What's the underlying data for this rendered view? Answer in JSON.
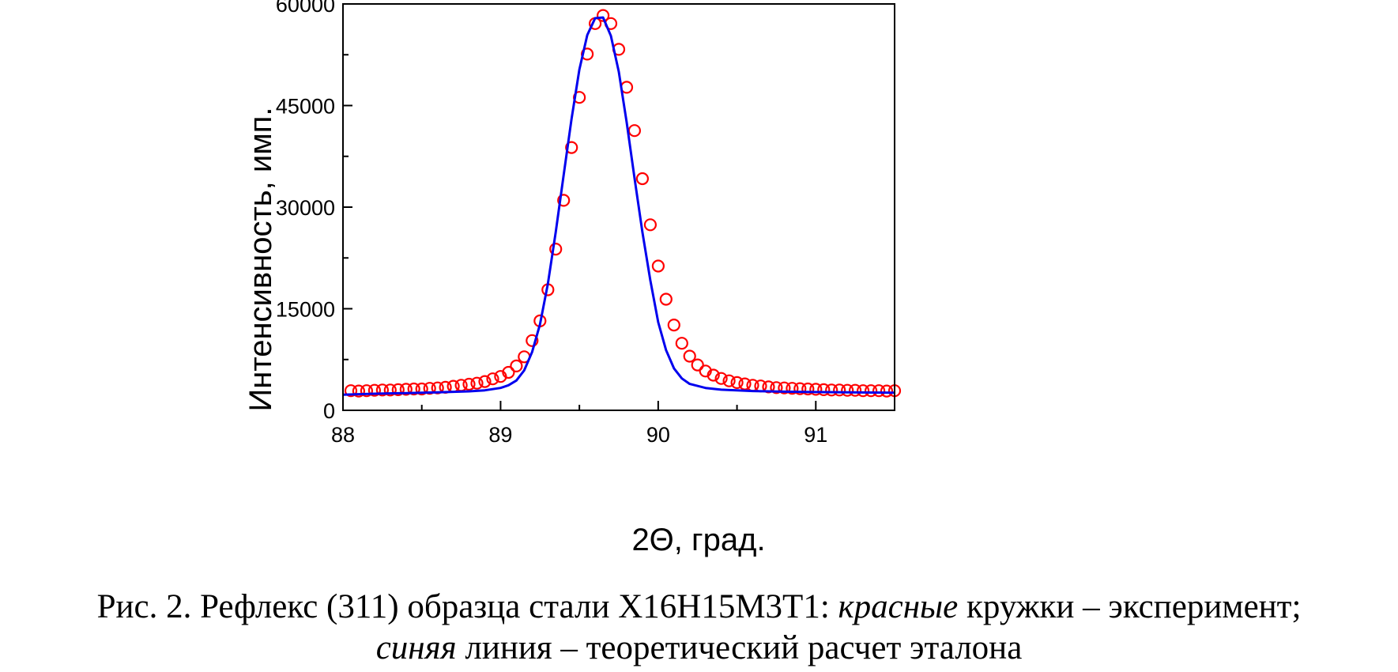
{
  "chart_data": {
    "type": "scatter",
    "xlabel": "2Θ, град.",
    "ylabel": "Интенсивность, имп.",
    "xlim": [
      88,
      91.5
    ],
    "ylim": [
      0,
      60000
    ],
    "xticks": [
      88,
      89,
      90,
      91
    ],
    "yticks": [
      0,
      15000,
      30000,
      45000,
      60000
    ],
    "grid": false,
    "series": [
      {
        "kind": "markers",
        "marker": "open-circle",
        "color": "#ff0000",
        "x": [
          88.05,
          88.1,
          88.15,
          88.2,
          88.25,
          88.3,
          88.35,
          88.4,
          88.45,
          88.5,
          88.55,
          88.6,
          88.65,
          88.7,
          88.75,
          88.8,
          88.85,
          88.9,
          88.95,
          89.0,
          89.05,
          89.1,
          89.15,
          89.2,
          89.25,
          89.3,
          89.35,
          89.4,
          89.45,
          89.5,
          89.55,
          89.6,
          89.65,
          89.7,
          89.75,
          89.8,
          89.85,
          89.9,
          89.95,
          90.0,
          90.05,
          90.1,
          90.15,
          90.2,
          90.25,
          90.3,
          90.35,
          90.4,
          90.45,
          90.5,
          90.55,
          90.6,
          90.65,
          90.7,
          90.75,
          90.8,
          90.85,
          90.9,
          90.95,
          91.0,
          91.05,
          91.1,
          91.15,
          91.2,
          91.25,
          91.3,
          91.35,
          91.4,
          91.45,
          91.5
        ],
        "y": [
          2900,
          2850,
          2900,
          2950,
          3000,
          3000,
          3050,
          3100,
          3150,
          3150,
          3250,
          3300,
          3400,
          3550,
          3700,
          3850,
          4000,
          4250,
          4650,
          5000,
          5600,
          6550,
          7900,
          10300,
          13200,
          17800,
          23800,
          31000,
          38800,
          46200,
          52600,
          57100,
          58300,
          57100,
          53300,
          47700,
          41300,
          34200,
          27400,
          21300,
          16400,
          12600,
          9900,
          8000,
          6700,
          5800,
          5200,
          4700,
          4350,
          4100,
          3900,
          3700,
          3600,
          3450,
          3350,
          3300,
          3250,
          3200,
          3150,
          3100,
          3050,
          3000,
          3000,
          2950,
          2950,
          2900,
          2900,
          2900,
          2850,
          2900
        ]
      },
      {
        "kind": "line",
        "color": "#0000ee",
        "x": [
          88.0,
          88.2,
          88.4,
          88.6,
          88.8,
          88.9,
          89.0,
          89.05,
          89.1,
          89.15,
          89.2,
          89.25,
          89.3,
          89.35,
          89.4,
          89.45,
          89.5,
          89.55,
          89.6,
          89.65,
          89.7,
          89.75,
          89.8,
          89.85,
          89.9,
          89.95,
          90.0,
          90.05,
          90.1,
          90.15,
          90.2,
          90.3,
          90.4,
          90.6,
          90.8,
          91.0,
          91.2,
          91.5
        ],
        "y": [
          2300,
          2450,
          2550,
          2650,
          2800,
          2950,
          3300,
          3700,
          4400,
          5900,
          8600,
          12700,
          18700,
          26300,
          34700,
          43000,
          50300,
          55400,
          57900,
          58000,
          55300,
          50000,
          42500,
          34300,
          26300,
          19200,
          13000,
          8900,
          6200,
          4700,
          3900,
          3300,
          3050,
          2850,
          2750,
          2700,
          2650,
          2600
        ]
      }
    ]
  },
  "caption": {
    "line1_a": "Рис. 2. Рефлекс (311) образца стали Х16Н15М3Т1: ",
    "line1_b": "красные",
    "line1_c": " кружки – эксперимент;",
    "line2_a": "синяя",
    "line2_b": " линия – теоретический расчет эталона"
  }
}
